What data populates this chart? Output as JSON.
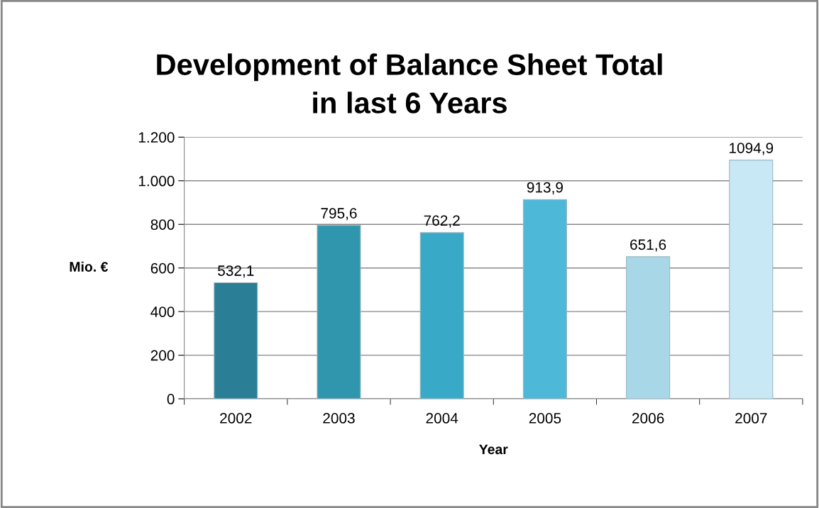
{
  "chart_data": {
    "type": "bar",
    "title": "Development of Balance Sheet Total\nin last 6 Years",
    "xlabel": "Year",
    "ylabel": "Mio. €",
    "categories": [
      "2002",
      "2003",
      "2004",
      "2005",
      "2006",
      "2007"
    ],
    "values": [
      532.1,
      795.6,
      762.2,
      913.9,
      651.6,
      1094.9
    ],
    "colors": [
      "#2a7f96",
      "#3096ad",
      "#38aac8",
      "#4db8d8",
      "#a8d8e8",
      "#c8e8f5"
    ],
    "value_labels": [
      "532,1",
      "795,6",
      "762,2",
      "913,9",
      "651,6",
      "1094,9"
    ],
    "ylim": [
      0,
      1200
    ],
    "yticks": [
      0,
      200,
      400,
      600,
      800,
      {
        "value": 1000,
        "label": "1.000"
      },
      {
        "value": 1200,
        "label": "1.200"
      }
    ],
    "grid": "y"
  }
}
